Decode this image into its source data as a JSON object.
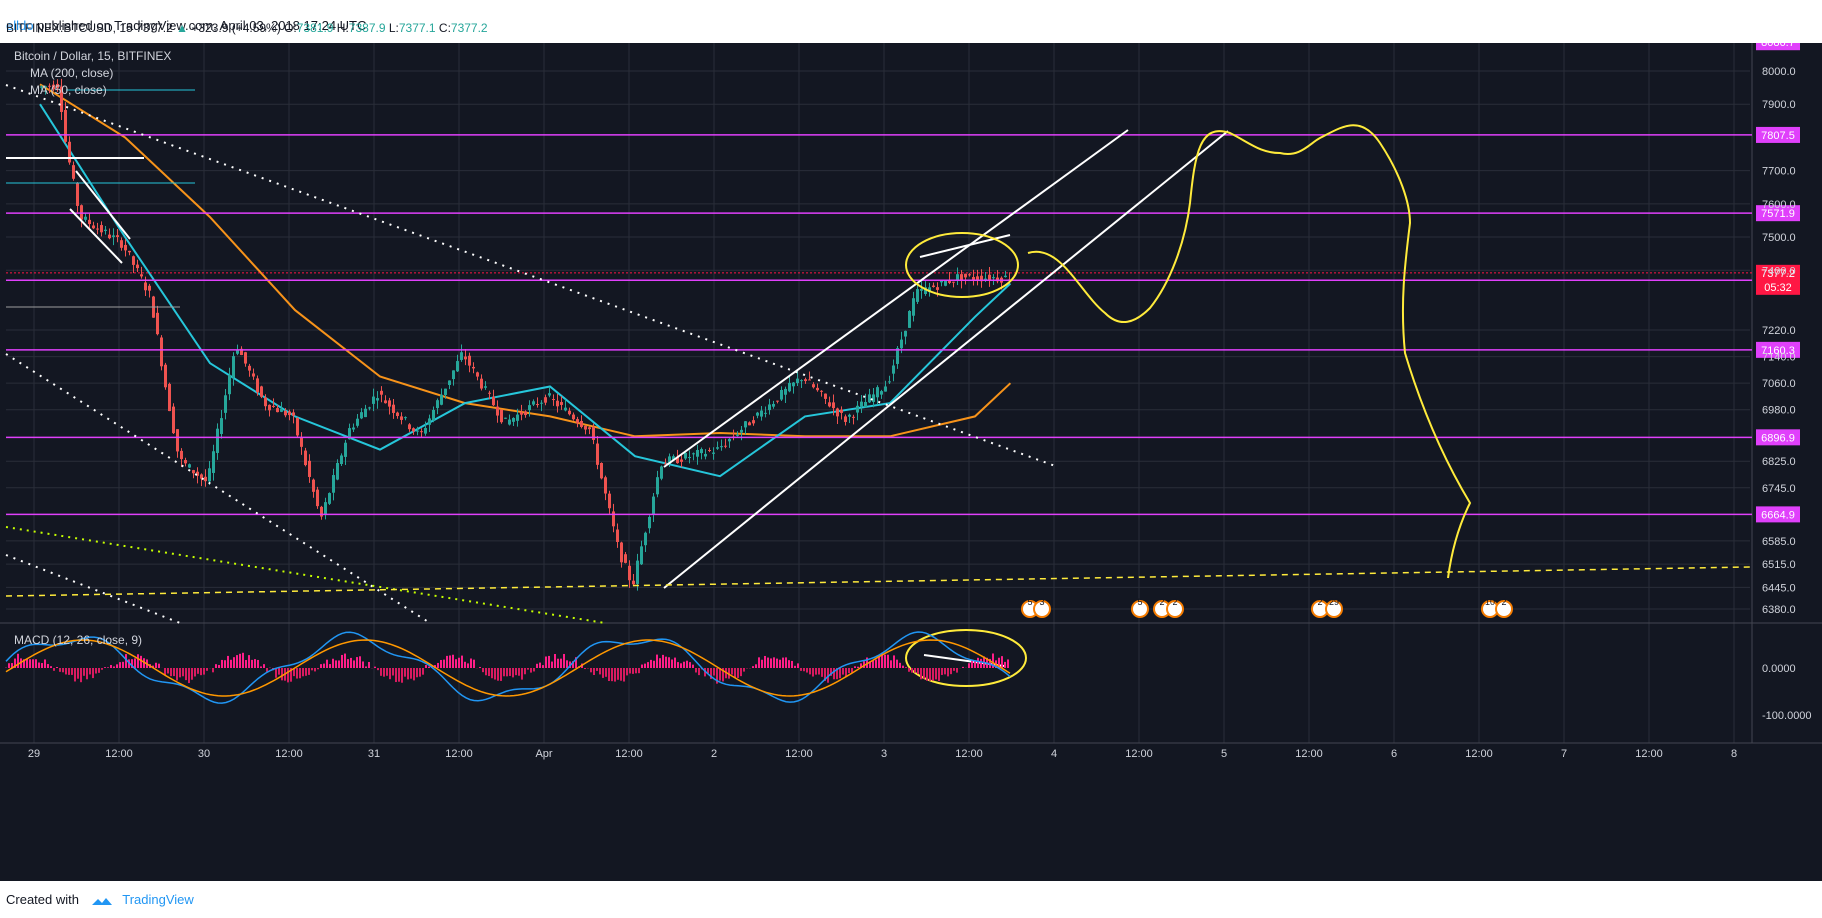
{
  "header": {
    "user": "elldo",
    "published": " published on TradingView.com, April 03, 2018 17:24 UTC",
    "symbol": "BITFINEX:BTCUSD, 15",
    "price": "7377.2",
    "change_arrow": "▲",
    "change": "+323.9 (+4.59%)",
    "o_label": "O:",
    "o_value": "7381.9",
    "h_label": "H:",
    "h_value": "7387.9",
    "l_label": "L:",
    "l_value": "7377.1",
    "c_label": "C:",
    "c_value": "7377.2"
  },
  "legend": {
    "title": "Bitcoin / Dollar, 15, BITFINEX",
    "ma200": "MA (200, close)",
    "ma50": "MA (50, close)",
    "macd": "MACD (12, 26, close, 9)"
  },
  "colors": {
    "background": "#131722",
    "up": "#26a69a",
    "down": "#ef5350",
    "ma200": "#f7931a",
    "ma50": "#26c6da",
    "level_line": "#e040fb",
    "level_label_bg": "#e040fb",
    "price_tag_bg": "#ff1744",
    "drawing_yellow": "#ffeb3b",
    "grid": "#2a2e39",
    "axis_text": "#d1d4dc"
  },
  "chart_data": {
    "type": "candlestick",
    "title": "Bitcoin / Dollar, 15, BITFINEX",
    "ylim": [
      6380,
      8086.7
    ],
    "y_ticks": [
      "8000.0",
      "7900.0",
      "7700.0",
      "7600.0",
      "7500.0",
      "7400.0",
      "7220.0",
      "7140.0",
      "7060.0",
      "6980.0",
      "6825.0",
      "6745.0",
      "6585.0",
      "6515.0",
      "6445.0",
      "6380.0"
    ],
    "x_ticks": [
      "29",
      "12:00",
      "30",
      "12:00",
      "31",
      "12:00",
      "Apr",
      "12:00",
      "2",
      "12:00",
      "3",
      "12:00",
      "4",
      "12:00",
      "5",
      "12:00",
      "6",
      "12:00",
      "7",
      "12:00",
      "8"
    ],
    "horizontal_levels": [
      {
        "label": "8086.7",
        "value": 8086.7
      },
      {
        "label": "7807.5",
        "value": 7807.5
      },
      {
        "label": "7571.9",
        "value": 7571.9
      },
      {
        "label": "7370.1",
        "value": 7370.1
      },
      {
        "label": "7160.3",
        "value": 7160.3
      },
      {
        "label": "6896.9",
        "value": 6896.9
      },
      {
        "label": "6664.9",
        "value": 6664.9
      }
    ],
    "last_price": {
      "label": "7377.2",
      "countdown": "05:32",
      "value": 7377.2
    },
    "price_path": [
      {
        "x": "29 00:00",
        "y": 7950
      },
      {
        "x": "29 03:00",
        "y": 7960
      },
      {
        "x": "29 04:00",
        "y": 7780
      },
      {
        "x": "29 06:00",
        "y": 7560
      },
      {
        "x": "29 12:00",
        "y": 7480
      },
      {
        "x": "29 16:00",
        "y": 7320
      },
      {
        "x": "29 18:00",
        "y": 7060
      },
      {
        "x": "29 20:00",
        "y": 6830
      },
      {
        "x": "30 00:00",
        "y": 6760
      },
      {
        "x": "30 04:00",
        "y": 7180
      },
      {
        "x": "30 08:00",
        "y": 7000
      },
      {
        "x": "30 12:00",
        "y": 6960
      },
      {
        "x": "30 16:00",
        "y": 6650
      },
      {
        "x": "30 20:00",
        "y": 6920
      },
      {
        "x": "31 00:00",
        "y": 7030
      },
      {
        "x": "31 06:00",
        "y": 6900
      },
      {
        "x": "31 12:00",
        "y": 7150
      },
      {
        "x": "31 18:00",
        "y": 6940
      },
      {
        "x": "Apr 00:00",
        "y": 7020
      },
      {
        "x": "Apr 06:00",
        "y": 6920
      },
      {
        "x": "Apr 10:00",
        "y": 6560
      },
      {
        "x": "Apr 12:00",
        "y": 6450
      },
      {
        "x": "Apr 16:00",
        "y": 6820
      },
      {
        "x": "2 00:00",
        "y": 6860
      },
      {
        "x": "2 06:00",
        "y": 6970
      },
      {
        "x": "2 12:00",
        "y": 7080
      },
      {
        "x": "2 18:00",
        "y": 6950
      },
      {
        "x": "3 00:00",
        "y": 7060
      },
      {
        "x": "3 04:00",
        "y": 7330
      },
      {
        "x": "3 10:00",
        "y": 7380
      },
      {
        "x": "3 17:00",
        "y": 7377.2
      }
    ],
    "ma200_path": [
      {
        "x": "29 00:00",
        "y": 7960
      },
      {
        "x": "29 12:00",
        "y": 7800
      },
      {
        "x": "30 00:00",
        "y": 7560
      },
      {
        "x": "30 12:00",
        "y": 7280
      },
      {
        "x": "31 00:00",
        "y": 7080
      },
      {
        "x": "31 12:00",
        "y": 7000
      },
      {
        "x": "Apr 00:00",
        "y": 6960
      },
      {
        "x": "Apr 12:00",
        "y": 6900
      },
      {
        "x": "2 00:00",
        "y": 6910
      },
      {
        "x": "2 12:00",
        "y": 6900
      },
      {
        "x": "3 00:00",
        "y": 6900
      },
      {
        "x": "3 12:00",
        "y": 6960
      },
      {
        "x": "3 17:00",
        "y": 7060
      }
    ],
    "ma50_path": [
      {
        "x": "29 00:00",
        "y": 7900
      },
      {
        "x": "29 12:00",
        "y": 7500
      },
      {
        "x": "30 00:00",
        "y": 7120
      },
      {
        "x": "30 12:00",
        "y": 6960
      },
      {
        "x": "31 00:00",
        "y": 6860
      },
      {
        "x": "31 12:00",
        "y": 7000
      },
      {
        "x": "Apr 00:00",
        "y": 7050
      },
      {
        "x": "Apr 12:00",
        "y": 6840
      },
      {
        "x": "2 00:00",
        "y": 6780
      },
      {
        "x": "2 12:00",
        "y": 6960
      },
      {
        "x": "3 00:00",
        "y": 7000
      },
      {
        "x": "3 12:00",
        "y": 7260
      },
      {
        "x": "3 17:00",
        "y": 7360
      }
    ],
    "macd_ylim": [
      -140,
      80
    ],
    "macd_ticks": [
      "0.0000",
      "-100.0000"
    ],
    "event_badges": [
      "5",
      "3",
      "5",
      "2",
      "2",
      "2",
      "29",
      "10",
      "2"
    ]
  }
}
